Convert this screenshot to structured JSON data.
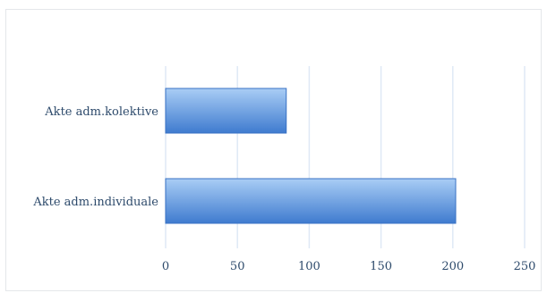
{
  "chart_data": {
    "type": "bar",
    "orientation": "horizontal",
    "categories": [
      "Akte adm.kolektive",
      "Akte adm.individuale"
    ],
    "values": [
      84,
      202
    ],
    "xlim": [
      0,
      250
    ],
    "xticks": [
      0,
      50,
      100,
      150,
      200,
      250
    ],
    "title": "",
    "xlabel": "",
    "ylabel": "",
    "grid": "vertical",
    "legend": "none",
    "colors": {
      "bar_top": "#a9cdf5",
      "bar_bottom": "#3f7bcf",
      "bar_border": "#3a72c4",
      "grid": "#dfe9f5",
      "text": "#2d4a6b"
    }
  }
}
